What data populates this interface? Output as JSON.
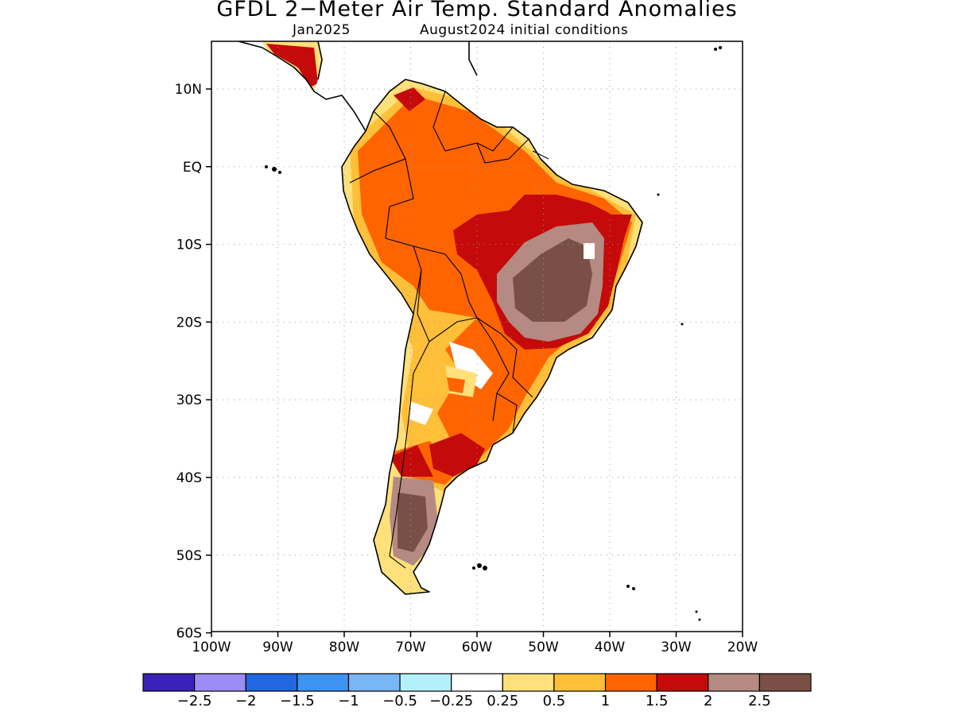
{
  "title": "GFDL 2−Meter Air Temp. Standard Anomalies",
  "subtitle_left": "Jan2025",
  "subtitle_right": "August2024 initial conditions",
  "map": {
    "lon_range": [
      -100,
      -20
    ],
    "lat_range": [
      -60,
      5
    ],
    "lat_ticks": [
      {
        "label": "10N",
        "lat": 10
      },
      {
        "label": "EQ",
        "lat": 0
      },
      {
        "label": "10S",
        "lat": -10
      },
      {
        "label": "20S",
        "lat": -20
      },
      {
        "label": "30S",
        "lat": -30
      },
      {
        "label": "40S",
        "lat": -40
      },
      {
        "label": "50S",
        "lat": -50
      },
      {
        "label": "60S",
        "lat": -60
      }
    ],
    "lon_ticks": [
      {
        "label": "100W",
        "lon": -100
      },
      {
        "label": "90W",
        "lon": -90
      },
      {
        "label": "80W",
        "lon": -80
      },
      {
        "label": "70W",
        "lon": -70
      },
      {
        "label": "60W",
        "lon": -60
      },
      {
        "label": "50W",
        "lon": -50
      },
      {
        "label": "40W",
        "lon": -40
      },
      {
        "label": "30W",
        "lon": -30
      },
      {
        "label": "20W",
        "lon": -20
      }
    ],
    "grid": true
  },
  "colorbar": {
    "colors": [
      "#3a21b8",
      "#9c8cf5",
      "#2266e0",
      "#3c93f0",
      "#78b6f5",
      "#b4f0fa",
      "#ffffff",
      "#ffe07a",
      "#ffbf38",
      "#ff6400",
      "#c40a0a",
      "#b48a82",
      "#7a5046"
    ],
    "labels": [
      "−2.5",
      "−2",
      "−1.5",
      "−1",
      "−0.5",
      "−0.25",
      "0.25",
      "0.5",
      "1",
      "1.5",
      "2",
      "2.5"
    ]
  }
}
